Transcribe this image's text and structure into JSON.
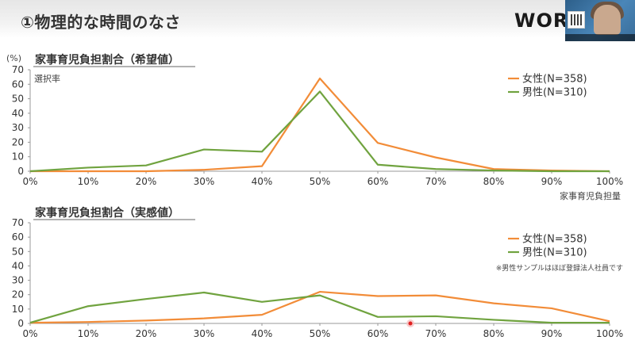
{
  "slide": {
    "title": "①物理的な時間のなさ",
    "logo": "WOR",
    "webcam_icon": "webcam-video-icon"
  },
  "colors": {
    "female": "#F28C38",
    "male": "#70A33F",
    "axis": "#999999",
    "cursor": "#e02020"
  },
  "unit_label": "(%)",
  "chart_data": [
    {
      "type": "line",
      "title": "家事育児負担割合（希望値）",
      "ylabel": "選択率",
      "xlabel": "家事育児負担量",
      "x": [
        "0%",
        "10%",
        "20%",
        "30%",
        "40%",
        "50%",
        "60%",
        "70%",
        "80%",
        "90%",
        "100%"
      ],
      "yticks": [
        0,
        10,
        20,
        30,
        40,
        50,
        60,
        70
      ],
      "ylim": [
        0,
        70
      ],
      "legend_position": "top-right",
      "grid": false,
      "series": [
        {
          "name": "女性(N=358)",
          "color": "#F28C38",
          "values": [
            0,
            0,
            0,
            1,
            3.5,
            64,
            19.5,
            9.5,
            1.5,
            0.5,
            0
          ]
        },
        {
          "name": "男性(N=310)",
          "color": "#70A33F",
          "values": [
            0,
            2.5,
            4,
            15,
            13.5,
            55,
            4.5,
            1.5,
            0.5,
            0,
            0
          ]
        }
      ]
    },
    {
      "type": "line",
      "title": "家事育児負担割合（実感値）",
      "note": "※男性サンプルはほぼ登録法人社員です",
      "x": [
        "0%",
        "10%",
        "20%",
        "30%",
        "40%",
        "50%",
        "60%",
        "70%",
        "80%",
        "90%",
        "100%"
      ],
      "yticks": [
        0,
        10,
        20,
        30,
        40,
        50,
        60,
        70
      ],
      "ylim": [
        0,
        70
      ],
      "legend_position": "top-right",
      "grid": false,
      "series": [
        {
          "name": "女性(N=358)",
          "color": "#F28C38",
          "values": [
            0.5,
            1,
            2,
            3.5,
            6,
            22,
            19,
            19.5,
            14,
            10.5,
            1.5
          ]
        },
        {
          "name": "男性(N=310)",
          "color": "#70A33F",
          "values": [
            0.5,
            12,
            17,
            21.5,
            15,
            19.5,
            4.5,
            5,
            2.5,
            0.5,
            0.5
          ]
        }
      ]
    }
  ]
}
